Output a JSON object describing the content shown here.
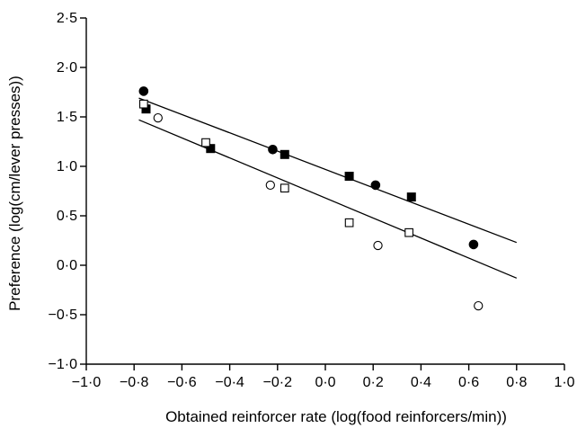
{
  "chart_data": {
    "type": "scatter",
    "xlabel": "Obtained reinforcer rate (log(food reinforcers/min))",
    "ylabel": "Preference (log(cm/lever presses))",
    "xlim": [
      -1.0,
      1.0
    ],
    "ylim": [
      -1.0,
      2.5
    ],
    "grid": false,
    "x_ticks": [
      "−1·0",
      "−0·8",
      "−0·6",
      "−0·4",
      "−0·2",
      "0·0",
      "0·2",
      "0·4",
      "0·6",
      "0·8",
      "1·0"
    ],
    "x_tick_values": [
      -1.0,
      -0.8,
      -0.6,
      -0.4,
      -0.2,
      0.0,
      0.2,
      0.4,
      0.6,
      0.8,
      1.0
    ],
    "y_ticks": [
      "−1·0",
      "−0·5",
      "0·0",
      "0·5",
      "1·0",
      "1·5",
      "2·0",
      "2·5"
    ],
    "y_tick_values": [
      -1.0,
      -0.5,
      0.0,
      0.5,
      1.0,
      1.5,
      2.0,
      2.5
    ],
    "series": [
      {
        "marker": "filled-circle",
        "points": [
          [
            -0.76,
            1.76
          ],
          [
            -0.22,
            1.17
          ],
          [
            0.21,
            0.81
          ],
          [
            0.62,
            0.21
          ]
        ]
      },
      {
        "marker": "filled-square",
        "points": [
          [
            -0.75,
            1.58
          ],
          [
            -0.48,
            1.18
          ],
          [
            -0.17,
            1.12
          ],
          [
            0.1,
            0.9
          ],
          [
            0.36,
            0.69
          ]
        ]
      },
      {
        "marker": "open-circle",
        "points": [
          [
            -0.7,
            1.49
          ],
          [
            -0.23,
            0.81
          ],
          [
            0.22,
            0.2
          ],
          [
            0.64,
            -0.41
          ]
        ]
      },
      {
        "marker": "open-square",
        "points": [
          [
            -0.76,
            1.63
          ],
          [
            -0.5,
            1.24
          ],
          [
            -0.17,
            0.78
          ],
          [
            0.1,
            0.43
          ],
          [
            0.35,
            0.33
          ]
        ]
      }
    ],
    "fit_lines": [
      {
        "x": [
          -0.78,
          0.8
        ],
        "y": [
          1.69,
          0.23
        ]
      },
      {
        "x": [
          -0.78,
          0.8
        ],
        "y": [
          1.47,
          -0.13
        ]
      }
    ]
  }
}
